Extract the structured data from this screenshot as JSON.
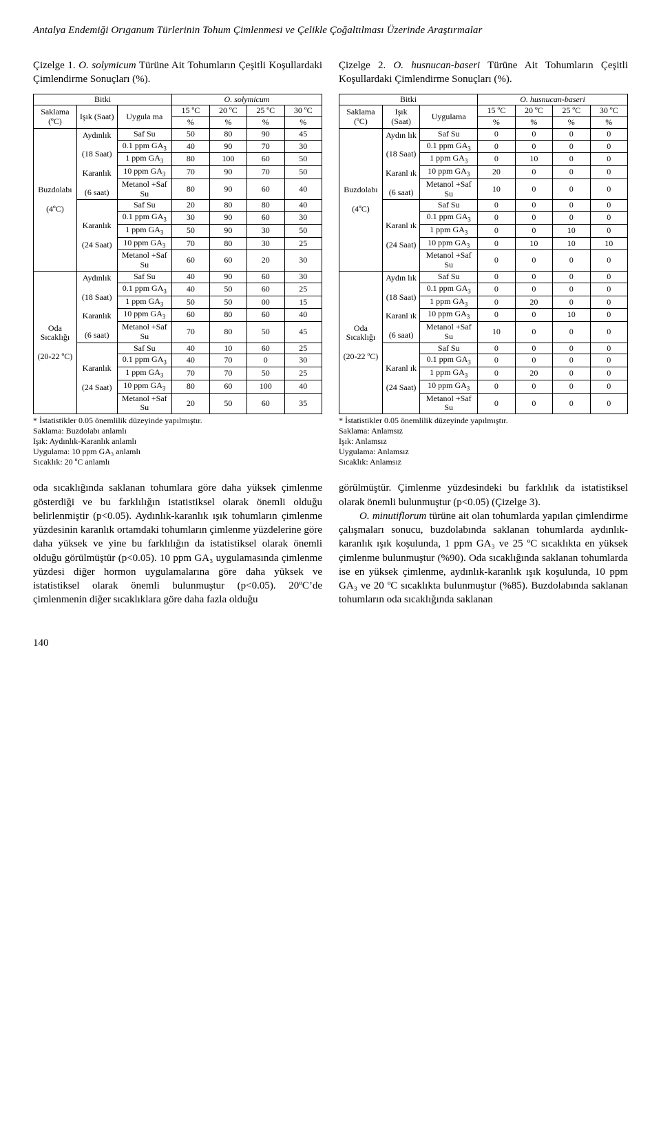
{
  "running_head": "Antalya Endemiği Orıganum Türlerinin Tohum Çimlenmesi ve Çelikle Çoğaltılması Üzerinde Araştırmalar",
  "page_number": "140",
  "left": {
    "caption_prefix": "Çizelge 1. ",
    "caption_species": "O. solymicum",
    "caption_rest": " Türüne Ait Tohumların Çeşitli Koşullardaki Çimlendirme Sonuçları (%).",
    "hdr_bitki": "Bitki",
    "hdr_species": "O. solymicum",
    "temps": [
      "15 ºC",
      "20 ºC",
      "25 ºC",
      "30 ºC"
    ],
    "col_saklama": "Saklama (ºC)",
    "col_isik": "Işık (Saat)",
    "col_uygulama": "Uygula ma",
    "col_pct": "%",
    "storage_1": "Buzdolabı",
    "storage_1b": "(4ºC)",
    "storage_2": "Oda Sıcaklığı",
    "storage_2b": "(20-22 ºC)",
    "light_a1": "Aydınlık",
    "light_a2": "(18 Saat)",
    "light_a3": "Karanlık",
    "light_a4": "(6 saat)",
    "light_b1": "Karanlık",
    "light_b2": "(24 Saat)",
    "treat": {
      "saf": "Saf Su",
      "p01": "0.1 ppm GA",
      "p1": "1 ppm GA",
      "p10": "10 ppm GA",
      "met": "Metanol +Saf Su"
    },
    "rows": [
      [
        "50",
        "80",
        "90",
        "45"
      ],
      [
        "40",
        "90",
        "70",
        "30"
      ],
      [
        "80",
        "100",
        "60",
        "50"
      ],
      [
        "70",
        "90",
        "70",
        "50"
      ],
      [
        "80",
        "90",
        "60",
        "40"
      ],
      [
        "20",
        "80",
        "80",
        "40"
      ],
      [
        "30",
        "90",
        "60",
        "30"
      ],
      [
        "50",
        "90",
        "30",
        "50"
      ],
      [
        "70",
        "80",
        "30",
        "25"
      ],
      [
        "60",
        "60",
        "20",
        "30"
      ],
      [
        "40",
        "90",
        "60",
        "30"
      ],
      [
        "40",
        "50",
        "60",
        "25"
      ],
      [
        "50",
        "50",
        "00",
        "15"
      ],
      [
        "60",
        "80",
        "60",
        "40"
      ],
      [
        "70",
        "80",
        "50",
        "45"
      ],
      [
        "40",
        "10",
        "60",
        "25"
      ],
      [
        "40",
        "70",
        "0",
        "30"
      ],
      [
        "70",
        "70",
        "50",
        "25"
      ],
      [
        "80",
        "60",
        "100",
        "40"
      ],
      [
        "20",
        "50",
        "60",
        "35"
      ]
    ],
    "footnotes": [
      "* İstatistikler 0.05 önemlilik düzeyinde yapılmıştır.",
      "Saklama: Buzdolabı anlamlı",
      "Işık: Aydınlık-Karanlık anlamlı",
      "Uygulama: 10 ppm GA₃ anlamlı",
      "Sıcaklık: 20 ºC anlamlı"
    ]
  },
  "right": {
    "caption_prefix": "Çizelge 2. ",
    "caption_species": "O. husnucan-baseri",
    "caption_rest": " Türüne Ait Tohumların Çeşitli Koşullardaki Çimlendirme Sonuçları (%).",
    "hdr_bitki": "Bitki",
    "hdr_species": "O. husnucan-baseri",
    "temps": [
      "15 ºC",
      "20 ºC",
      "25 ºC",
      "30 ºC"
    ],
    "col_saklama": "Saklama (ºC)",
    "col_isik": "Işık (Saat)",
    "col_uygulama": "Uygulama",
    "col_pct": "%",
    "storage_1": "Buzdolabı",
    "storage_1b": "(4ºC)",
    "storage_2": "Oda Sıcaklığı",
    "storage_2b": "(20-22 ºC)",
    "light_a1": "Aydın lık",
    "light_a2": "(18 Saat)",
    "light_a3": "Karanl ık",
    "light_a4": "(6 saat)",
    "light_b1": "Karanl ık",
    "light_b2": "(24 Saat)",
    "rows": [
      [
        "0",
        "0",
        "0",
        "0"
      ],
      [
        "0",
        "0",
        "0",
        "0"
      ],
      [
        "0",
        "10",
        "0",
        "0"
      ],
      [
        "20",
        "0",
        "0",
        "0"
      ],
      [
        "10",
        "0",
        "0",
        "0"
      ],
      [
        "0",
        "0",
        "0",
        "0"
      ],
      [
        "0",
        "0",
        "0",
        "0"
      ],
      [
        "0",
        "0",
        "10",
        "0"
      ],
      [
        "0",
        "10",
        "10",
        "10"
      ],
      [
        "0",
        "0",
        "0",
        "0"
      ],
      [
        "0",
        "0",
        "0",
        "0"
      ],
      [
        "0",
        "0",
        "0",
        "0"
      ],
      [
        "0",
        "20",
        "0",
        "0"
      ],
      [
        "0",
        "0",
        "10",
        "0"
      ],
      [
        "10",
        "0",
        "0",
        "0"
      ],
      [
        "0",
        "0",
        "0",
        "0"
      ],
      [
        "0",
        "0",
        "0",
        "0"
      ],
      [
        "0",
        "20",
        "0",
        "0"
      ],
      [
        "0",
        "0",
        "0",
        "0"
      ],
      [
        "0",
        "0",
        "0",
        "0"
      ]
    ],
    "footnotes": [
      "* İstatistikler 0.05 önemlilik düzeyinde yapılmıştır.",
      "Saklama: Anlamsız",
      "Işık: Anlamsız",
      "Uygulama: Anlamsız",
      "Sıcaklık: Anlamsız"
    ]
  },
  "para_left": "oda sıcaklığında saklanan tohumlara göre daha yüksek çimlenme gösterdiği ve bu farklılığın istatistiksel olarak önemli olduğu belirlenmiştir (p<0.05). Aydınlık-karanlık ışık tohumların çimlenme yüzdesinin karanlık ortamdaki tohumların çimlenme yüzdelerine göre daha yüksek ve yine bu farklılığın da istatistiksel olarak önemli olduğu görülmüştür (p<0.05). 10 ppm GA₃ uygulamasında çimlenme yüzdesi diğer hormon uygulamalarına        göre daha yüksek ve istatistiksel olarak önemli bulunmuştur (p<0.05). 20ºC’de çimlenmenin diğer sıcaklıklara göre daha fazla olduğu",
  "para_right_1": "görülmüştür. Çimlenme yüzdesindeki bu farklılık da istatistiksel olarak önemli bulunmuştur (p<0.05) (Çizelge 3).",
  "para_right_2_pre": "O. minutiflorum",
  "para_right_2": " türüne ait olan tohumlarda yapılan çimlendirme çalışmaları sonucu, buzdolabında saklanan tohumlarda aydınlık-karanlık ışık koşulunda, 1 ppm GA₃ ve 25 ºC sıcaklıkta en yüksek çimlenme bulunmuştur (%90). Oda sıcaklığında saklanan tohumlarda ise en yüksek çimlenme, aydınlık-karanlık ışık koşulunda, 10 ppm GA₃ ve 20 ºC sıcaklıkta bulunmuştur (%85). Buzdolabında saklanan tohumların oda sıcaklığında saklanan"
}
